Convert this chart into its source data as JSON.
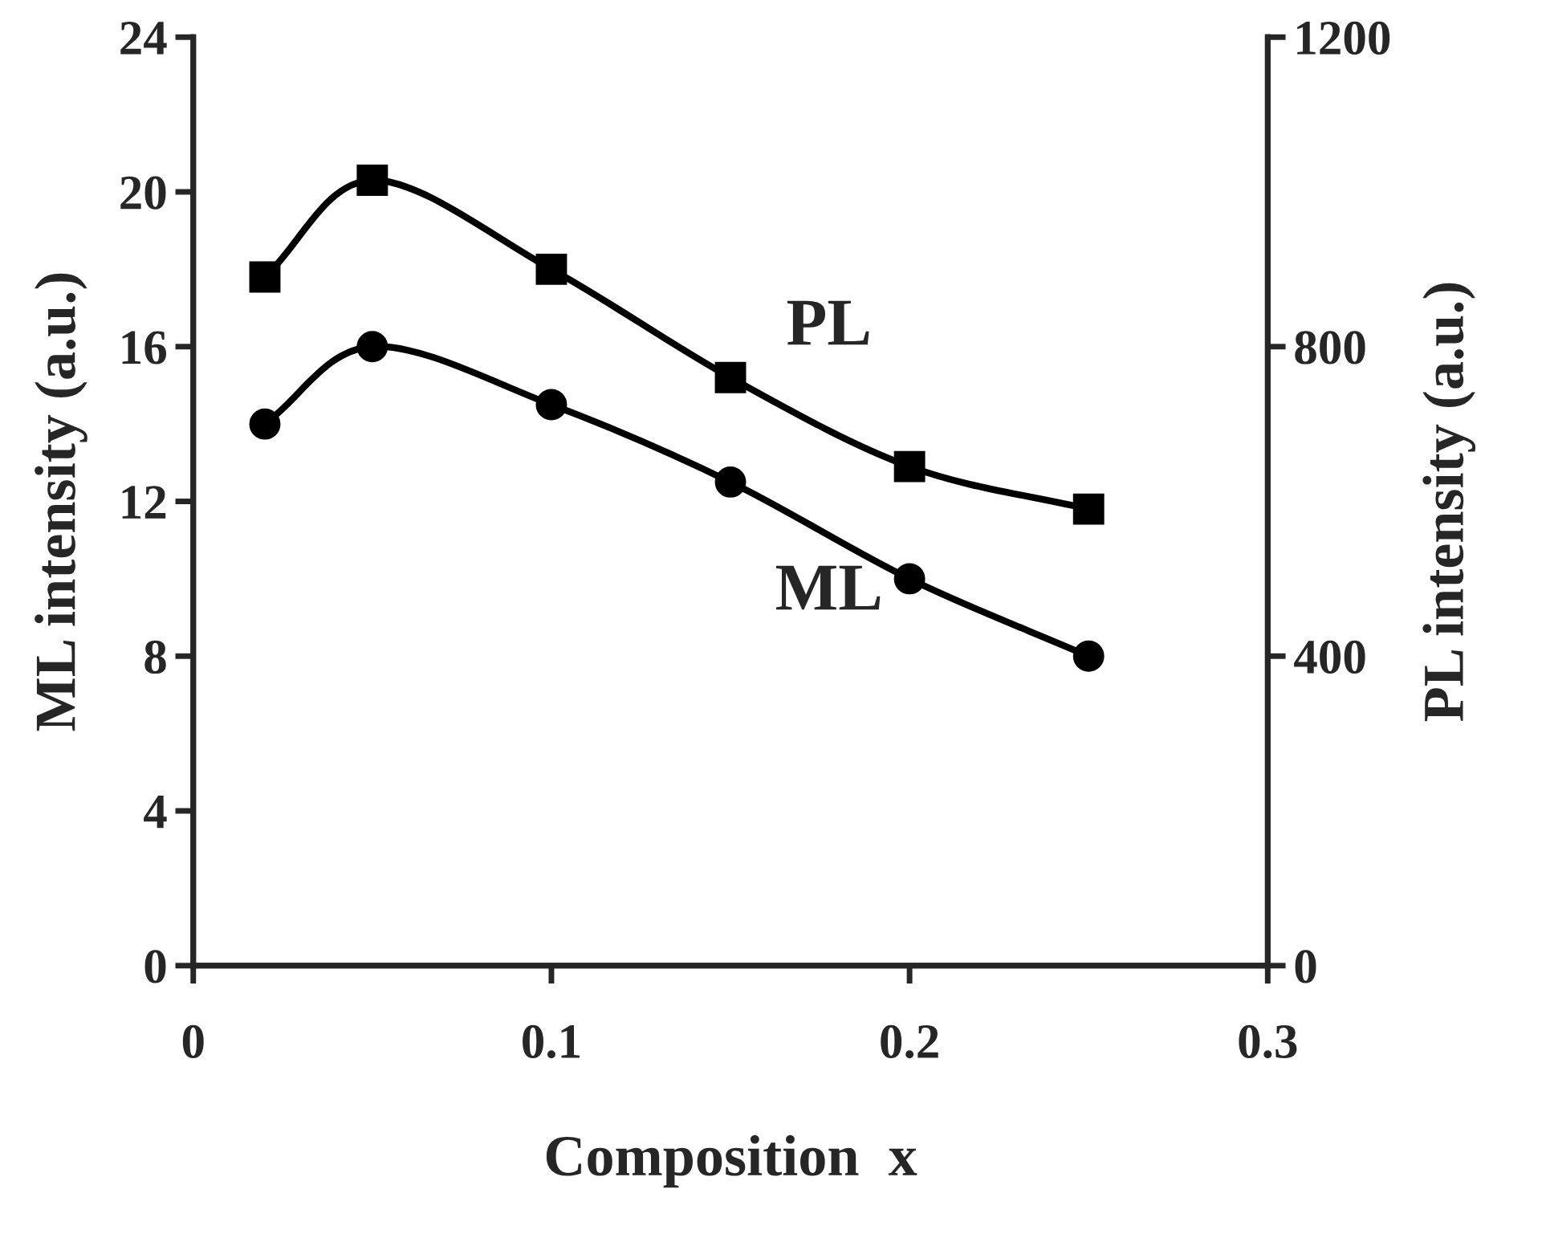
{
  "chart_data": {
    "type": "line",
    "xlabel": "Composition  x",
    "ylabel": "ML intensity (a.u.)",
    "y2label": "PL intensity (a.u.)",
    "x": [
      0.02,
      0.05,
      0.1,
      0.15,
      0.2,
      0.25
    ],
    "series": [
      {
        "name": "ML",
        "color": "#000000",
        "marker": "circle",
        "values": [
          14.0,
          16.0,
          14.5,
          12.5,
          10.0,
          8.0
        ]
      },
      {
        "name": "PL",
        "color": "#000000",
        "marker": "square",
        "axis": "y2",
        "values": [
          890,
          1015,
          900,
          760,
          645,
          590
        ]
      }
    ],
    "xlim": [
      0,
      0.3
    ],
    "xticks": [
      0,
      0.1,
      0.2,
      0.3
    ],
    "ylim": [
      0,
      24
    ],
    "yticks": [
      0,
      4,
      8,
      12,
      16,
      20,
      24
    ],
    "y2lim": [
      0,
      1200
    ],
    "y2ticks": [
      0,
      400,
      800,
      1200
    ],
    "line_style": "solid",
    "grid": false,
    "legend": false
  }
}
